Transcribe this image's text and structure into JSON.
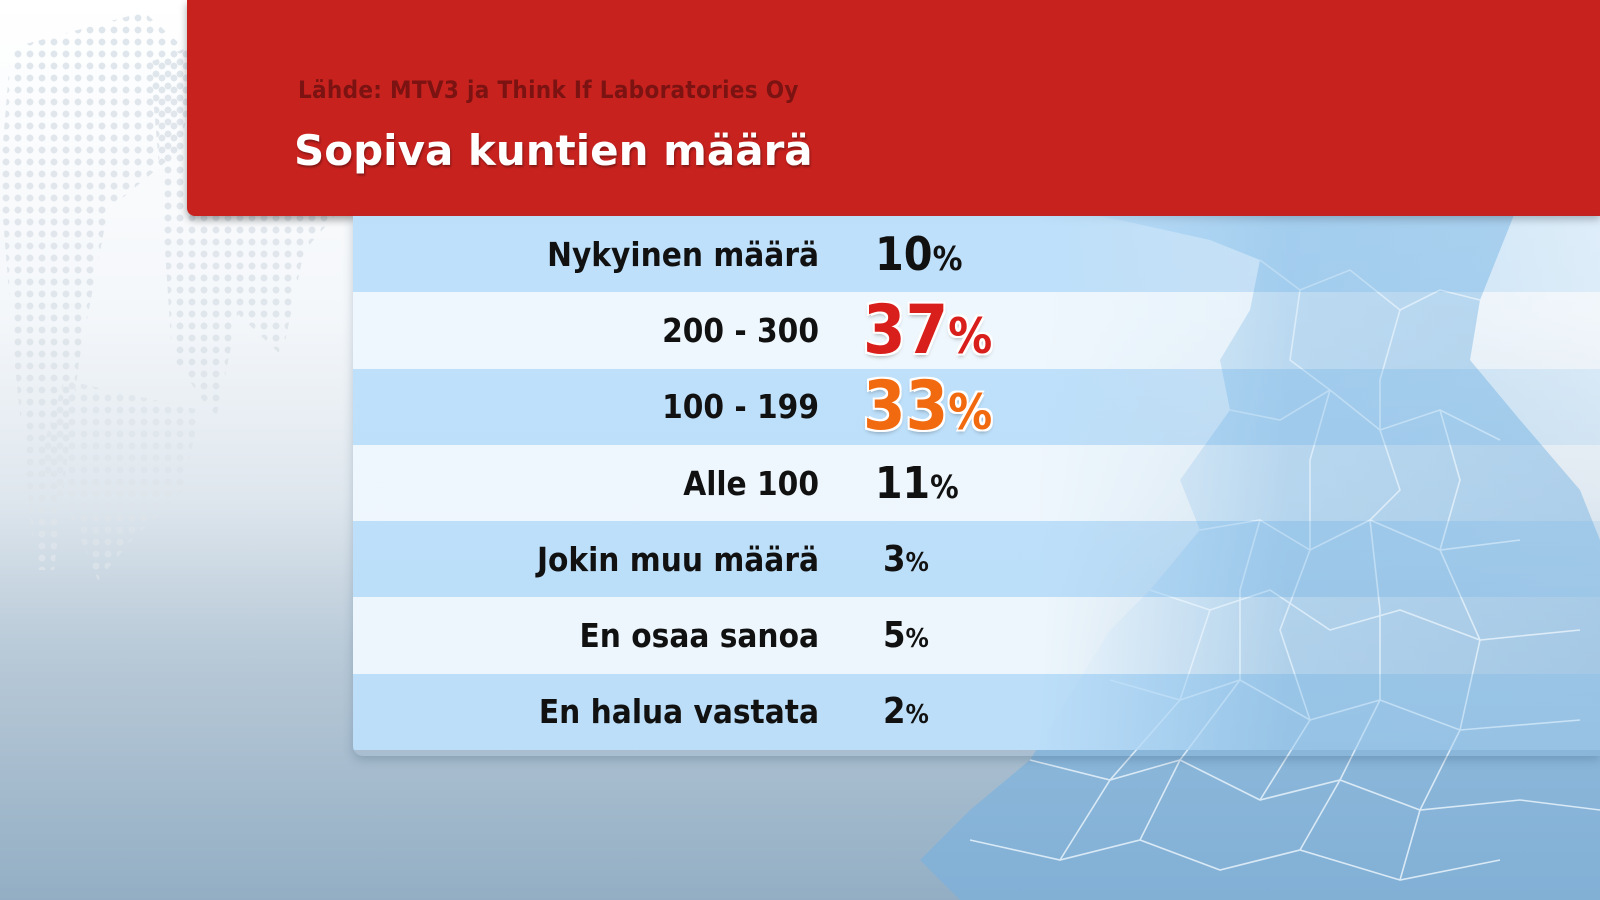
{
  "source": "Lähde: MTV3 ja Think If Laboratories Oy",
  "title": "Sopiva kuntien määrä",
  "colors": {
    "header": "#c8221f",
    "highlight_top": "#d91f1c",
    "highlight_second": "#f26a10",
    "row_dark": "#bcdffa",
    "row_light": "#eef7fd"
  },
  "chart_data": {
    "type": "table",
    "title": "Sopiva kuntien määrä",
    "categories": [
      "Nykyinen määrä",
      "200 - 300",
      "100 - 199",
      "Alle 100",
      "Jokin muu määrä",
      "En osaa sanoa",
      "En halua vastata"
    ],
    "values": [
      10,
      37,
      33,
      11,
      3,
      5,
      2
    ],
    "unit": "%",
    "rows": [
      {
        "label": "Nykyinen määrä",
        "value": "10",
        "unit": "%"
      },
      {
        "label": "200 - 300",
        "value": "37",
        "unit": "%"
      },
      {
        "label": "100 - 199",
        "value": "33",
        "unit": "%"
      },
      {
        "label": "Alle 100",
        "value": "11",
        "unit": "%"
      },
      {
        "label": "Jokin muu määrä",
        "value": "3",
        "unit": "%"
      },
      {
        "label": "En osaa sanoa",
        "value": "5",
        "unit": "%"
      },
      {
        "label": "En halua vastata",
        "value": "2",
        "unit": "%"
      }
    ]
  }
}
